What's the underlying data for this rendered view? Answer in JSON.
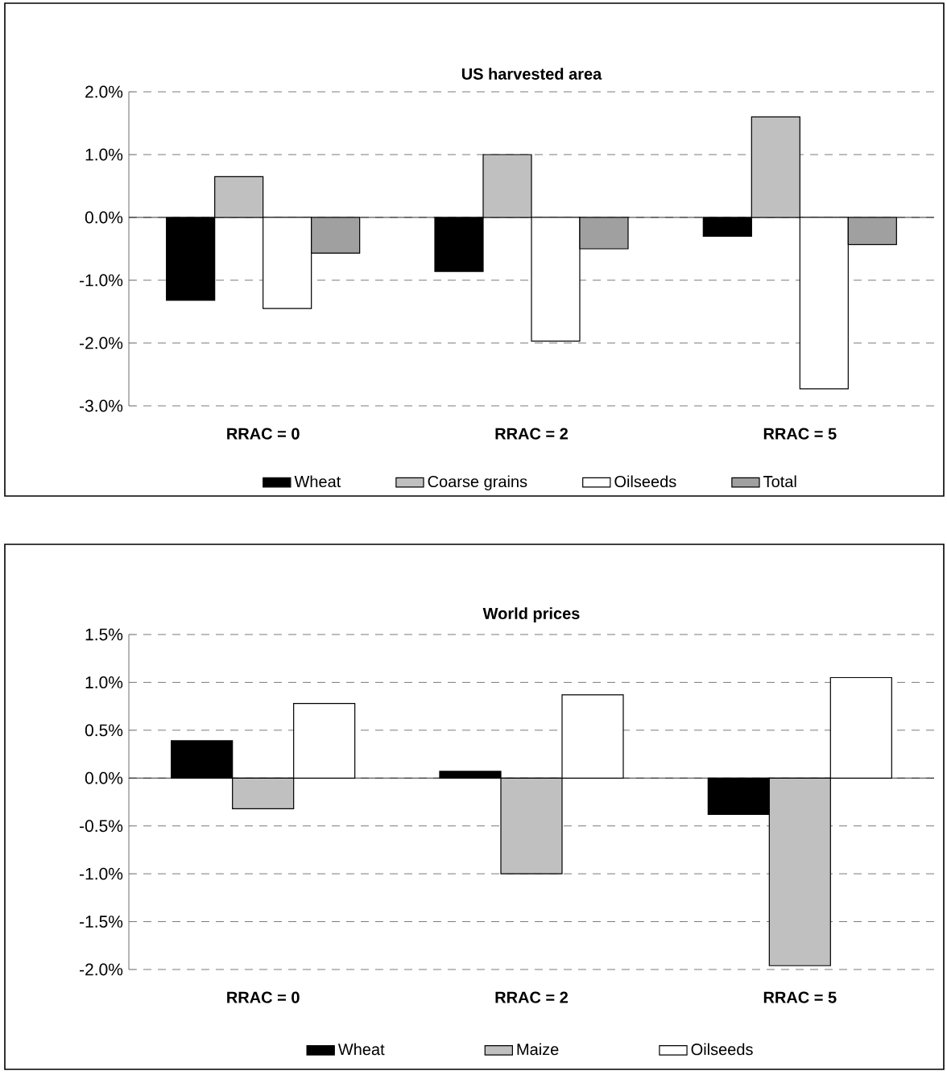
{
  "chart_data": [
    {
      "type": "bar",
      "title": "US harvested area",
      "categories": [
        "RRAC = 0",
        "RRAC = 2",
        "RRAC = 5"
      ],
      "series": [
        {
          "name": "Wheat",
          "color": "#000000",
          "values": [
            -1.32,
            -0.86,
            -0.3
          ]
        },
        {
          "name": "Coarse grains",
          "color": "#c0c0c0",
          "values": [
            0.65,
            1.0,
            1.6
          ]
        },
        {
          "name": "Oilseeds",
          "color": "#ffffff",
          "values": [
            -1.45,
            -1.97,
            -2.73
          ]
        },
        {
          "name": "Total",
          "color": "#a0a0a0",
          "values": [
            -0.57,
            -0.5,
            -0.43
          ]
        }
      ],
      "ylim": [
        -3,
        2
      ],
      "yticks": [
        {
          "value": -3,
          "label": "-3.0%"
        },
        {
          "value": -2,
          "label": "-2.0%"
        },
        {
          "value": -1,
          "label": "-1.0%"
        },
        {
          "value": 0,
          "label": "0.0%"
        },
        {
          "value": 1,
          "label": "1.0%"
        },
        {
          "value": 2,
          "label": "2.0%"
        }
      ],
      "grid": "y",
      "legend": "bottom"
    },
    {
      "type": "bar",
      "title": "World prices",
      "categories": [
        "RRAC = 0",
        "RRAC = 2",
        "RRAC = 5"
      ],
      "series": [
        {
          "name": "Wheat",
          "color": "#000000",
          "values": [
            0.39,
            0.07,
            -0.38
          ]
        },
        {
          "name": "Maize",
          "color": "#c0c0c0",
          "values": [
            -0.32,
            -1.0,
            -1.96
          ]
        },
        {
          "name": "Oilseeds",
          "color": "#ffffff",
          "values": [
            0.78,
            0.87,
            1.05
          ]
        }
      ],
      "ylim": [
        -2,
        1.5
      ],
      "yticks": [
        {
          "value": -2,
          "label": "-2.0%"
        },
        {
          "value": -1.5,
          "label": "-1.5%"
        },
        {
          "value": -1,
          "label": "-1.0%"
        },
        {
          "value": -0.5,
          "label": "-0.5%"
        },
        {
          "value": 0,
          "label": "0.0%"
        },
        {
          "value": 0.5,
          "label": "0.5%"
        },
        {
          "value": 1,
          "label": "1.0%"
        },
        {
          "value": 1.5,
          "label": "1.5%"
        }
      ],
      "grid": "y",
      "legend": "bottom"
    }
  ]
}
